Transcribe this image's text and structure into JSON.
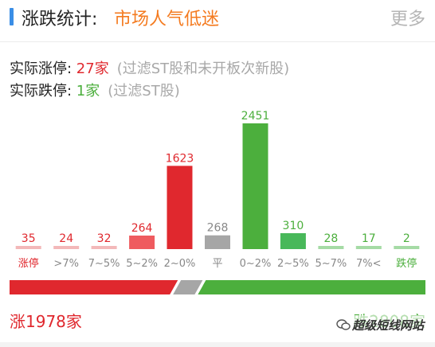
{
  "header": {
    "title": "涨跌统计:",
    "mood": "市场人气低迷",
    "more_label": "更多"
  },
  "stats": {
    "limit_up_label": "实际涨停: ",
    "limit_up_value": "27家",
    "limit_up_note": "(过滤ST股和未开板次新股)",
    "limit_down_label": "实际跌停: ",
    "limit_down_value": "1家",
    "limit_down_note": "(过滤ST股)"
  },
  "colors": {
    "up_strong": "#e0282e",
    "up_light": "#f05a5e",
    "flat": "#a6a6a6",
    "down_strong": "#4caf3d",
    "down_light": "#48b85a",
    "accent": "#3a8ee6",
    "mood": "#f47b20"
  },
  "chart_data": {
    "type": "bar",
    "categories": [
      "涨停",
      ">7%",
      "7~5%",
      "5~2%",
      "2~0%",
      "平",
      "0~2%",
      "2~5%",
      "5~7%",
      "7%<",
      "跌停"
    ],
    "values": [
      35,
      24,
      32,
      264,
      1623,
      268,
      2451,
      310,
      28,
      17,
      2
    ],
    "value_labels": [
      "35",
      "24",
      "32",
      "264",
      "1623",
      "268",
      "2451",
      "310",
      "28",
      "17",
      "2"
    ],
    "bar_colors": [
      "#f3b8b9",
      "#f3b8b9",
      "#f3b8b9",
      "#ef5b5f",
      "#e0282e",
      "#a6a6a6",
      "#4caf3d",
      "#48b85a",
      "#a5dba5",
      "#a5dba5",
      "#a5dba5"
    ],
    "label_colors": [
      "#e0282e",
      "#e0282e",
      "#e0282e",
      "#e0282e",
      "#e0282e",
      "#888888",
      "#4caf3d",
      "#4caf3d",
      "#4caf3d",
      "#4caf3d",
      "#4caf3d"
    ],
    "cat_colors": [
      "#e0282e",
      "#888888",
      "#888888",
      "#888888",
      "#888888",
      "#888888",
      "#888888",
      "#888888",
      "#888888",
      "#888888",
      "#4caf3d"
    ],
    "ylim": [
      0,
      2451
    ],
    "grid": false
  },
  "distribution": {
    "up_count": 1978,
    "flat_count": 268,
    "down_count": 2808
  },
  "footer": {
    "up_label": "涨1978家",
    "down_label": "跌2808家"
  },
  "watermark": {
    "text": "超级短线网站"
  }
}
